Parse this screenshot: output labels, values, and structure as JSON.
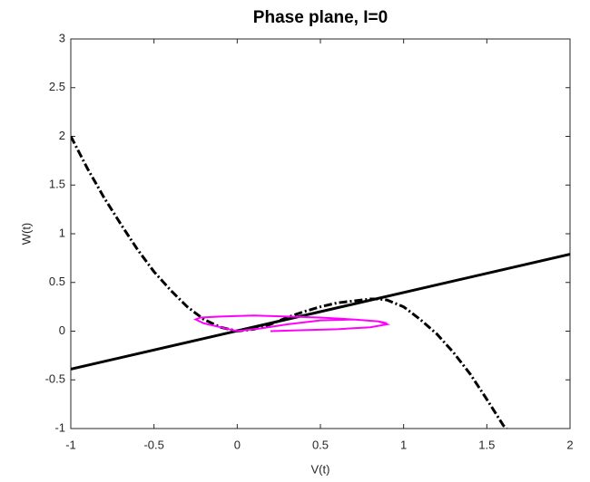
{
  "chart_data": {
    "type": "line",
    "title": "Phase plane, I=0",
    "xlabel": "V(t)",
    "ylabel": "W(t)",
    "xlim": [
      -1,
      2
    ],
    "xticks": [
      -1,
      -0.5,
      0,
      0.5,
      1,
      1.5,
      2
    ],
    "ylim": [
      -1,
      3
    ],
    "yticks": [
      -1,
      -0.5,
      0,
      0.5,
      1,
      1.5,
      2,
      2.5,
      3
    ],
    "grid": false,
    "series": [
      {
        "color": "#000000",
        "style": "dashdot",
        "x": [
          -1,
          -0.9,
          -0.8,
          -0.7,
          -0.6,
          -0.5,
          -0.4,
          -0.3,
          -0.2,
          -0.1,
          0,
          0.1,
          0.2,
          0.3,
          0.4,
          0.5,
          0.6,
          0.7,
          0.8,
          0.85,
          0.9,
          1,
          1.1,
          1.2,
          1.3,
          1.4,
          1.5,
          1.6,
          1.62
        ],
        "values": [
          2,
          1.67,
          1.37,
          1.1,
          0.84,
          0.61,
          0.42,
          0.25,
          0.12,
          0.04,
          0,
          0.02,
          0.07,
          0.14,
          0.2,
          0.25,
          0.29,
          0.31,
          0.33,
          0.33,
          0.32,
          0.25,
          0.12,
          -0.03,
          -0.22,
          -0.44,
          -0.7,
          -0.97,
          -1
        ]
      },
      {
        "color": "#000000",
        "style": "solid",
        "x": [
          -1,
          2
        ],
        "values": [
          -0.39,
          0.79
        ]
      },
      {
        "color": "#ff00ff",
        "style": "solid",
        "x": [
          0.2,
          0.4,
          0.6,
          0.8,
          0.9,
          0.85,
          0.7,
          0.5,
          0.3,
          0.1,
          -0.1,
          -0.22,
          -0.25,
          -0.2,
          -0.1,
          0,
          0.15,
          0.3,
          0.5,
          0.7,
          0.85,
          0.9
        ],
        "values": [
          0,
          0.01,
          0.02,
          0.04,
          0.07,
          0.1,
          0.12,
          0.14,
          0.15,
          0.16,
          0.15,
          0.14,
          0.12,
          0.08,
          0.04,
          0,
          0.03,
          0.07,
          0.11,
          0.12,
          0.1,
          0.08
        ]
      }
    ]
  }
}
